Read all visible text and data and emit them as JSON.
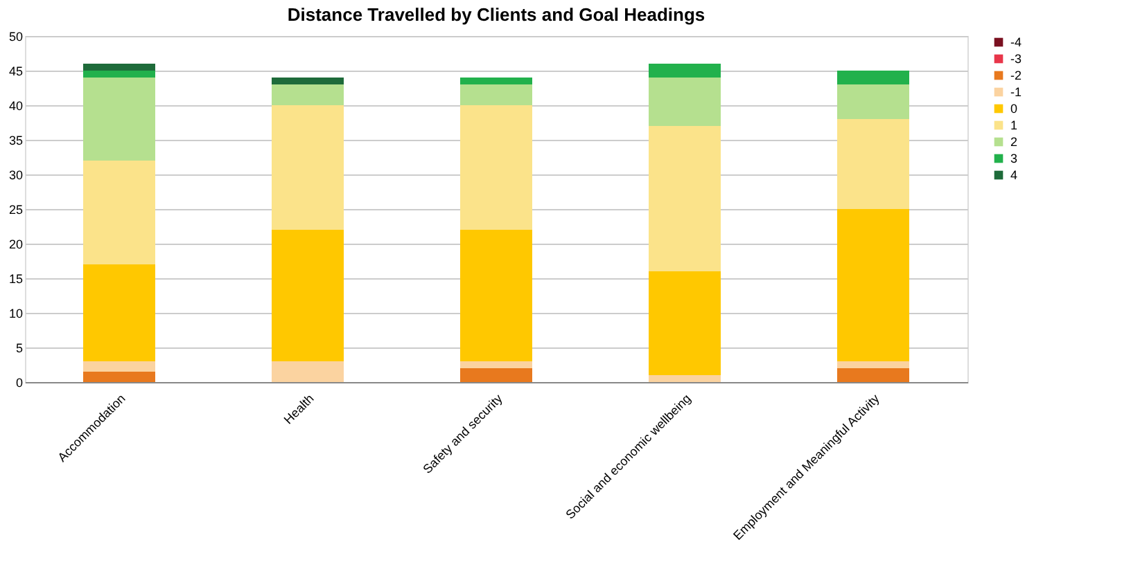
{
  "chart_data": {
    "type": "bar",
    "title": "Distance Travelled by Clients and Goal Headings",
    "categories": [
      "Accommodation",
      "Health",
      "Safety and security",
      "Social and economic wellbeing",
      "Employment and Meaningful Activity"
    ],
    "stacked": true,
    "series": [
      {
        "name": "-4",
        "color": "#7a1020",
        "values": [
          0,
          0,
          0,
          0,
          0
        ]
      },
      {
        "name": "-3",
        "color": "#e8364a",
        "values": [
          0,
          0,
          0,
          0,
          0
        ]
      },
      {
        "name": "-2",
        "color": "#e8791e",
        "values": [
          1.5,
          0,
          2,
          0,
          2
        ]
      },
      {
        "name": "-1",
        "color": "#fbd3a0",
        "values": [
          1.5,
          3,
          1,
          1,
          1
        ]
      },
      {
        "name": "0",
        "color": "#ffc800",
        "values": [
          14,
          19,
          19,
          15,
          22
        ]
      },
      {
        "name": "1",
        "color": "#fbe38a",
        "values": [
          15,
          18,
          18,
          21,
          13
        ]
      },
      {
        "name": "2",
        "color": "#b5e08f",
        "values": [
          12,
          3,
          3,
          7,
          5
        ]
      },
      {
        "name": "3",
        "color": "#22b14c",
        "values": [
          1,
          0,
          1,
          2,
          2
        ]
      },
      {
        "name": "4",
        "color": "#1e6b3a",
        "values": [
          1,
          1,
          0,
          0,
          0
        ]
      }
    ],
    "ylim": [
      0,
      50
    ],
    "yticks": [
      0,
      5,
      10,
      15,
      20,
      25,
      30,
      35,
      40,
      45,
      50
    ],
    "grid": "y",
    "legend": "right"
  }
}
